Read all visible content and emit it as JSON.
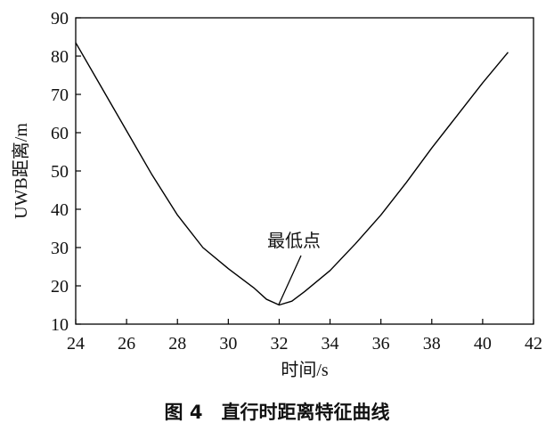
{
  "chart_data": {
    "type": "line",
    "caption": "图 4　直行时距离特征曲线",
    "xlabel": "时间/s",
    "ylabel": "UWB距离/m",
    "annotation": "最低点",
    "x": [
      24,
      25,
      26,
      27,
      28,
      29,
      30,
      31,
      31.5,
      32,
      32.5,
      33,
      34,
      35,
      36,
      37,
      38,
      39,
      40,
      41
    ],
    "series": [
      {
        "color": "#000000",
        "values": [
          83.5,
          72,
          60.5,
          49,
          38.5,
          30,
          24.5,
          19.5,
          16.5,
          15,
          16,
          18.5,
          24,
          31,
          38.5,
          47,
          56,
          64.5,
          73,
          81
        ]
      }
    ],
    "xlim": [
      24,
      42
    ],
    "xticks": [
      24,
      26,
      28,
      30,
      32,
      34,
      36,
      38,
      40,
      42
    ],
    "ylim": [
      10,
      90
    ],
    "yticks": [
      10,
      20,
      30,
      40,
      50,
      60,
      70,
      80,
      90
    ]
  }
}
